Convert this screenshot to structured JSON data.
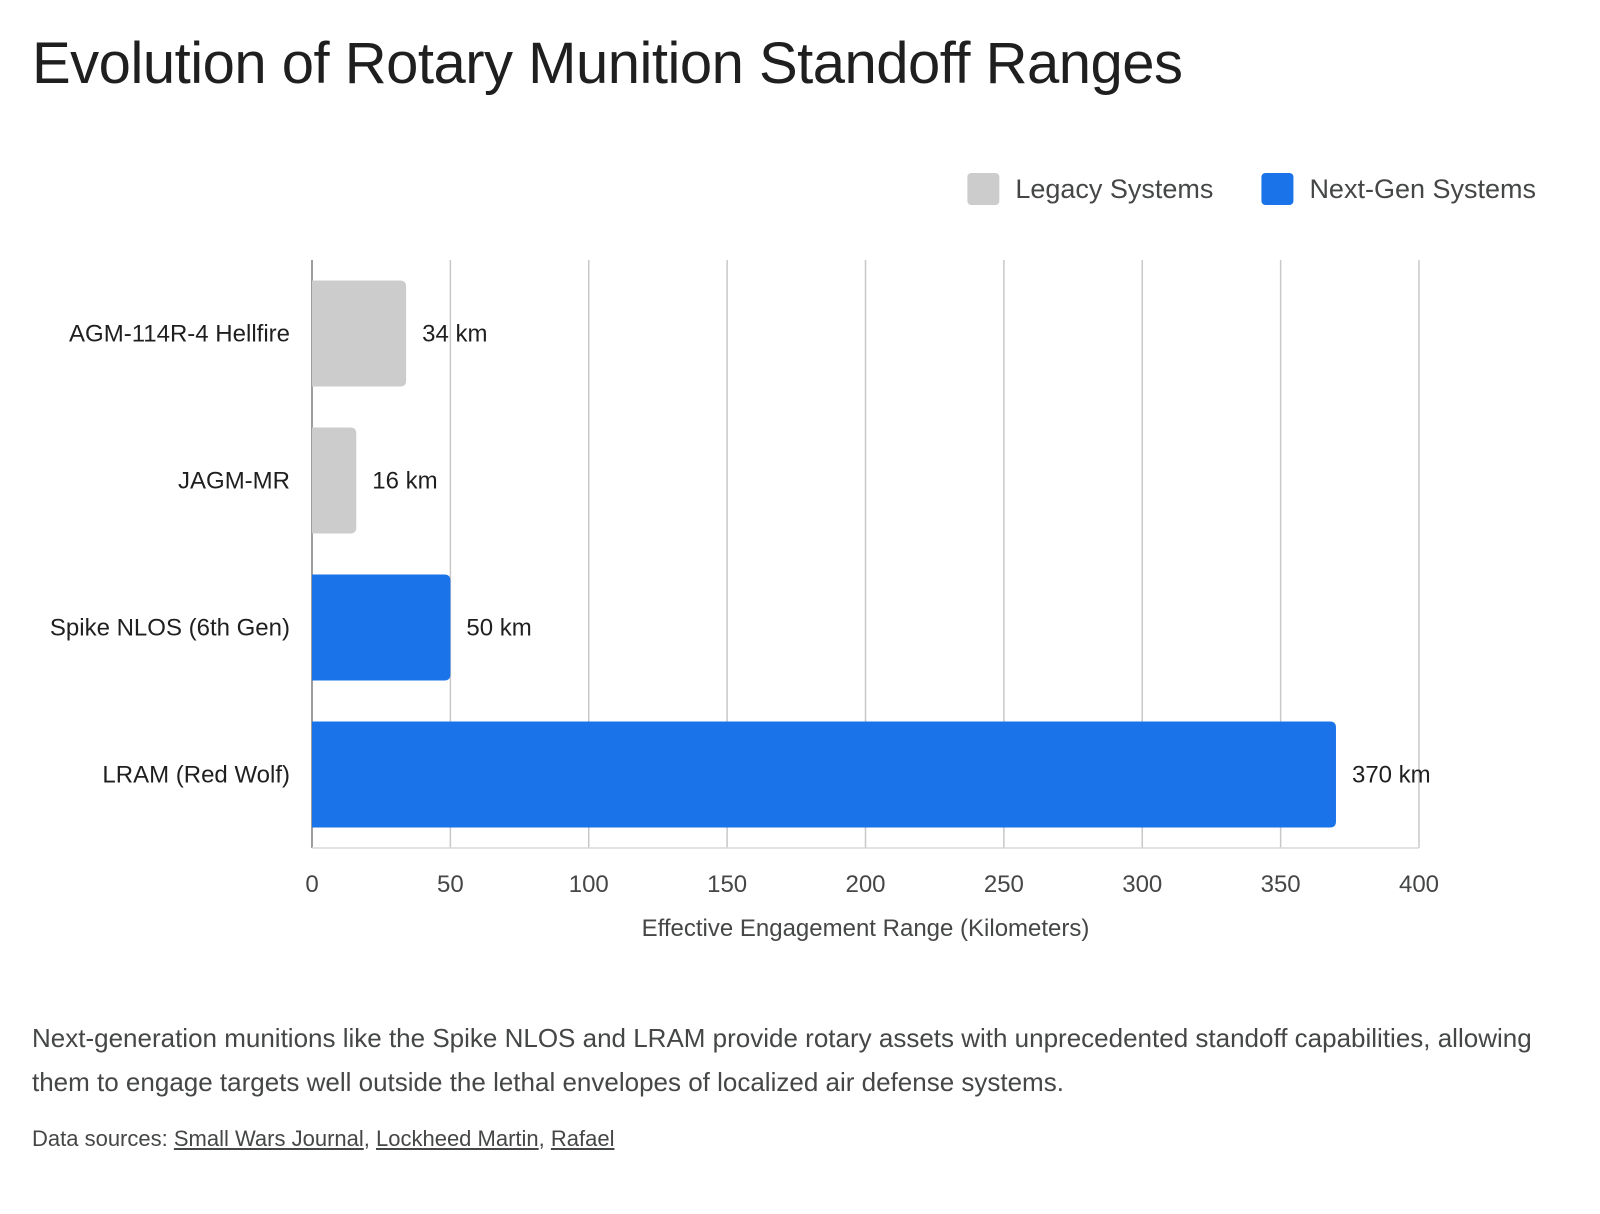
{
  "title": "Evolution of Rotary Munition Standoff Ranges",
  "note": "Next-generation munitions like the Spike NLOS and LRAM provide rotary assets with unprecedented standoff capabilities, allowing them to engage targets well outside the lethal envelopes of localized air defense systems.",
  "sources": {
    "prefix": "Data sources:",
    "links": [
      "Small Wars Journal",
      "Lockheed Martin",
      "Rafael"
    ]
  },
  "colors": {
    "legacy": "#cccccc",
    "nextgen": "#1a73e8",
    "grid": "#c8c8c8"
  },
  "chart_data": {
    "type": "bar",
    "orientation": "horizontal",
    "categories": [
      "AGM-114R-4 Hellfire",
      "JAGM-MR",
      "Spike NLOS (6th Gen)",
      "LRAM (Red Wolf)"
    ],
    "values": [
      34,
      16,
      50,
      370
    ],
    "value_labels": [
      "34 km",
      "16 km",
      "50 km",
      "370 km"
    ],
    "groups": [
      "Legacy Systems",
      "Legacy Systems",
      "Next-Gen Systems",
      "Next-Gen Systems"
    ],
    "legend": [
      {
        "name": "Legacy Systems",
        "color": "#cccccc"
      },
      {
        "name": "Next-Gen Systems",
        "color": "#1a73e8"
      }
    ],
    "legend_position": "top-right",
    "xlabel": "Effective Engagement Range (Kilometers)",
    "ylabel": "",
    "xlim": [
      0,
      400
    ],
    "xticks": [
      0,
      50,
      100,
      150,
      200,
      250,
      300,
      350,
      400
    ],
    "grid": "vertical"
  }
}
